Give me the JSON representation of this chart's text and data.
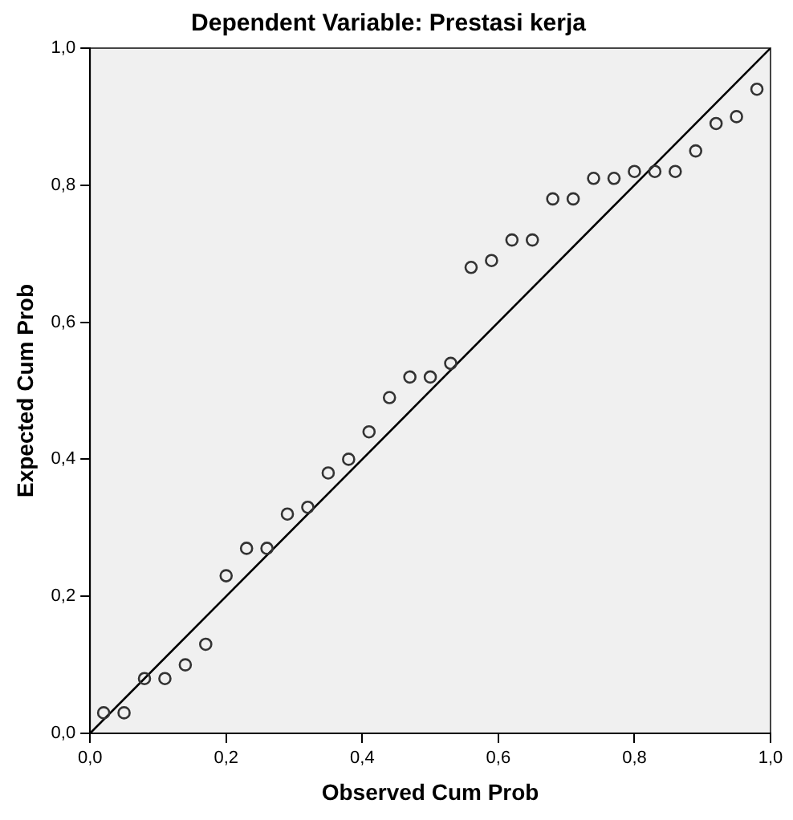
{
  "chart_data": {
    "type": "scatter",
    "title": "Dependent Variable: Prestasi kerja",
    "xlabel": "Observed Cum Prob",
    "ylabel": "Expected Cum Prob",
    "series": [
      {
        "color": "#333333",
        "marker": "circle",
        "x": [
          0.02,
          0.05,
          0.08,
          0.11,
          0.14,
          0.17,
          0.2,
          0.23,
          0.26,
          0.29,
          0.32,
          0.35,
          0.38,
          0.41,
          0.44,
          0.47,
          0.5,
          0.53,
          0.56,
          0.59,
          0.62,
          0.65,
          0.68,
          0.71,
          0.74,
          0.77,
          0.8,
          0.83,
          0.86,
          0.89,
          0.92,
          0.95,
          0.98
        ],
        "values": [
          0.03,
          0.03,
          0.08,
          0.08,
          0.1,
          0.13,
          0.23,
          0.27,
          0.27,
          0.32,
          0.33,
          0.38,
          0.4,
          0.44,
          0.49,
          0.52,
          0.52,
          0.54,
          0.68,
          0.69,
          0.72,
          0.72,
          0.78,
          0.78,
          0.81,
          0.81,
          0.82,
          0.82,
          0.82,
          0.85,
          0.89,
          0.9,
          0.94
        ]
      },
      {
        "type": "line",
        "color": "#000000",
        "marker": "none",
        "x": [
          0,
          1
        ],
        "values": [
          0,
          1
        ]
      }
    ],
    "xlim": [
      0,
      1
    ],
    "ylim": [
      0,
      1
    ],
    "xticks": [
      {
        "value": 0,
        "label": "0,0"
      },
      {
        "value": 0.2,
        "label": "0,2"
      },
      {
        "value": 0.4,
        "label": "0,4"
      },
      {
        "value": 0.6,
        "label": "0,6"
      },
      {
        "value": 0.8,
        "label": "0,8"
      },
      {
        "value": 1,
        "label": "1,0"
      }
    ],
    "yticks": [
      {
        "value": 0,
        "label": "0,0"
      },
      {
        "value": 0.2,
        "label": "0,2"
      },
      {
        "value": 0.4,
        "label": "0,4"
      },
      {
        "value": 0.6,
        "label": "0,6"
      },
      {
        "value": 0.8,
        "label": "0,8"
      },
      {
        "value": 1,
        "label": "1,0"
      }
    ],
    "grid": false,
    "legend": false
  }
}
